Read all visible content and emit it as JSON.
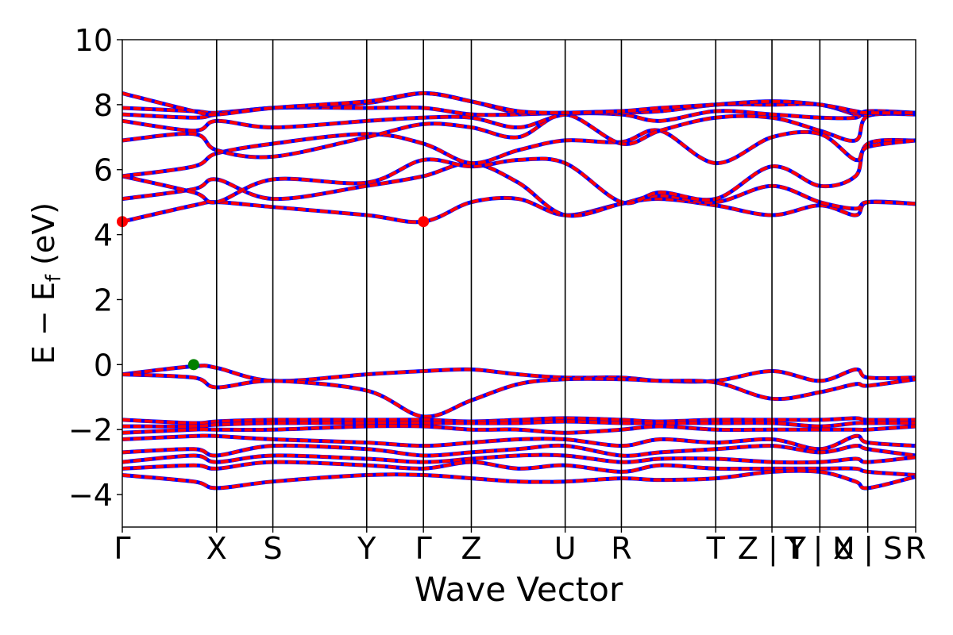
{
  "chart_data": {
    "type": "line",
    "title": "",
    "xlabel": "Wave Vector",
    "ylabel_main": "E − E",
    "ylabel_sub": "f",
    "ylabel_unit": " (eV)",
    "ylim": [
      -5,
      10
    ],
    "xlim": [
      0,
      1
    ],
    "yticks": [
      -4,
      -2,
      0,
      2,
      4,
      6,
      8,
      10
    ],
    "ytick_labels": [
      "−4",
      "−2",
      "0",
      "2",
      "4",
      "6",
      "8",
      "10"
    ],
    "kpoints": [
      {
        "x": 0.0,
        "label": "Γ"
      },
      {
        "x": 0.193,
        "label": "X"
      },
      {
        "x": 0.308,
        "label": "S"
      },
      {
        "x": 0.5,
        "label": "Y"
      },
      {
        "x": 0.616,
        "label": "Γ"
      },
      {
        "x": 0.714,
        "label": "Z"
      },
      {
        "x": 0.906,
        "label": "U"
      },
      {
        "x": 1.021,
        "label": "R"
      },
      {
        "x": 1.214,
        "label": "T"
      },
      {
        "x": 1.329,
        "label": "Z | Y"
      },
      {
        "x": 1.427,
        "label": "T | U"
      },
      {
        "x": 1.525,
        "label": "X | S"
      },
      {
        "x": 1.623,
        "label": "R"
      }
    ],
    "x_max": 1.623,
    "grid": false,
    "band_colors": {
      "spin_up": "#ff0000",
      "spin_down": "#0000ff"
    },
    "markers": [
      {
        "name": "CBM",
        "x": 0.0,
        "y": 4.4,
        "color": "#ff0000"
      },
      {
        "name": "CBM",
        "x": 0.616,
        "y": 4.4,
        "color": "#ff0000"
      },
      {
        "name": "VBM",
        "x": 0.146,
        "y": 0.0,
        "color": "#008000"
      }
    ],
    "conduction_bands": [
      [
        4.4,
        4.9,
        5.0,
        4.85,
        4.6,
        4.4,
        5.0,
        5.1,
        4.6,
        4.95,
        5.1,
        4.9,
        4.6,
        4.9,
        4.6,
        5.0,
        4.95
      ],
      [
        5.1,
        5.4,
        5.7,
        5.1,
        5.5,
        5.8,
        6.2,
        5.6,
        4.6,
        4.95,
        5.2,
        5.0,
        5.5,
        5.0,
        4.8,
        5.0,
        4.95
      ],
      [
        5.8,
        5.3,
        5.0,
        5.7,
        5.6,
        6.3,
        6.1,
        6.3,
        6.2,
        5.0,
        5.3,
        5.1,
        6.1,
        5.5,
        5.8,
        6.8,
        6.9
      ],
      [
        5.8,
        6.1,
        6.5,
        6.8,
        7.1,
        6.8,
        6.2,
        6.6,
        6.9,
        6.85,
        7.2,
        6.2,
        7.0,
        7.1,
        6.3,
        6.7,
        6.9
      ],
      [
        6.9,
        7.1,
        6.6,
        6.4,
        7.0,
        7.4,
        7.3,
        7.0,
        7.7,
        6.8,
        7.2,
        7.6,
        7.6,
        7.2,
        6.9,
        7.65,
        7.7
      ],
      [
        7.5,
        7.2,
        7.5,
        7.3,
        7.5,
        7.6,
        7.6,
        7.3,
        7.7,
        7.7,
        7.5,
        7.8,
        7.7,
        7.6,
        7.6,
        7.8,
        7.75
      ],
      [
        7.7,
        7.6,
        7.7,
        7.9,
        7.9,
        7.9,
        7.7,
        7.7,
        7.75,
        7.75,
        7.8,
        8.0,
        8.0,
        8.0,
        7.7,
        7.7,
        7.75
      ],
      [
        7.9,
        7.8,
        7.75,
        7.9,
        8.05,
        8.35,
        8.1,
        7.75,
        7.75,
        7.8,
        7.8,
        8.0,
        8.1,
        8.0,
        7.75,
        7.75,
        7.75
      ],
      [
        8.35,
        7.8,
        7.7,
        7.9,
        8.1,
        8.35,
        8.1,
        7.8,
        7.75,
        7.8,
        7.9,
        8.0,
        8.1,
        8.0,
        7.8,
        7.75,
        7.75
      ]
    ],
    "valence_bands": [
      [
        -0.3,
        -0.05,
        -0.1,
        -0.5,
        -0.3,
        -0.2,
        -0.15,
        -0.3,
        -0.4,
        -0.4,
        -0.5,
        -0.5,
        -0.2,
        -0.5,
        -0.15,
        -0.4,
        -0.4
      ],
      [
        -0.3,
        -0.4,
        -0.7,
        -0.5,
        -0.8,
        -1.6,
        -1.1,
        -0.6,
        -0.45,
        -0.45,
        -0.5,
        -0.55,
        -1.05,
        -0.85,
        -0.6,
        -0.65,
        -0.45
      ],
      [
        -1.7,
        -1.8,
        -1.75,
        -1.7,
        -1.7,
        -1.7,
        -1.75,
        -1.7,
        -1.65,
        -1.7,
        -1.75,
        -1.7,
        -1.7,
        -1.7,
        -1.65,
        -1.7,
        -1.7
      ],
      [
        -1.9,
        -1.9,
        -1.85,
        -1.8,
        -1.8,
        -1.8,
        -1.8,
        -1.8,
        -1.75,
        -1.8,
        -1.8,
        -1.8,
        -1.8,
        -1.9,
        -1.8,
        -1.8,
        -1.8
      ],
      [
        -2.1,
        -2.0,
        -2.0,
        -2.0,
        -1.9,
        -1.9,
        -2.0,
        -2.0,
        -2.1,
        -2.0,
        -1.9,
        -2.0,
        -2.0,
        -2.0,
        -2.0,
        -2.0,
        -1.9
      ],
      [
        -2.3,
        -2.2,
        -2.2,
        -2.3,
        -2.4,
        -2.5,
        -2.4,
        -2.3,
        -2.3,
        -2.5,
        -2.3,
        -2.4,
        -2.3,
        -2.6,
        -2.2,
        -2.4,
        -2.5
      ],
      [
        -2.7,
        -2.6,
        -2.8,
        -2.5,
        -2.6,
        -2.8,
        -2.7,
        -2.6,
        -2.5,
        -2.8,
        -2.7,
        -2.6,
        -2.5,
        -2.7,
        -2.5,
        -2.6,
        -2.8
      ],
      [
        -3.0,
        -2.8,
        -3.0,
        -2.8,
        -2.9,
        -3.0,
        -2.9,
        -2.8,
        -2.8,
        -3.0,
        -2.9,
        -2.9,
        -3.0,
        -3.0,
        -2.9,
        -3.0,
        -2.85
      ],
      [
        -3.2,
        -3.1,
        -3.2,
        -3.0,
        -3.1,
        -3.2,
        -3.0,
        -3.2,
        -3.1,
        -3.3,
        -3.1,
        -3.2,
        -3.2,
        -3.2,
        -3.2,
        -3.3,
        -3.4
      ],
      [
        -3.4,
        -3.6,
        -3.8,
        -3.6,
        -3.4,
        -3.4,
        -3.5,
        -3.6,
        -3.6,
        -3.5,
        -3.55,
        -3.5,
        -3.3,
        -3.3,
        -3.6,
        -3.8,
        -3.45
      ]
    ],
    "band_x": [
      0.0,
      0.146,
      0.193,
      0.308,
      0.5,
      0.616,
      0.714,
      0.81,
      0.906,
      1.021,
      1.1,
      1.214,
      1.329,
      1.427,
      1.5,
      1.525,
      1.623
    ]
  }
}
